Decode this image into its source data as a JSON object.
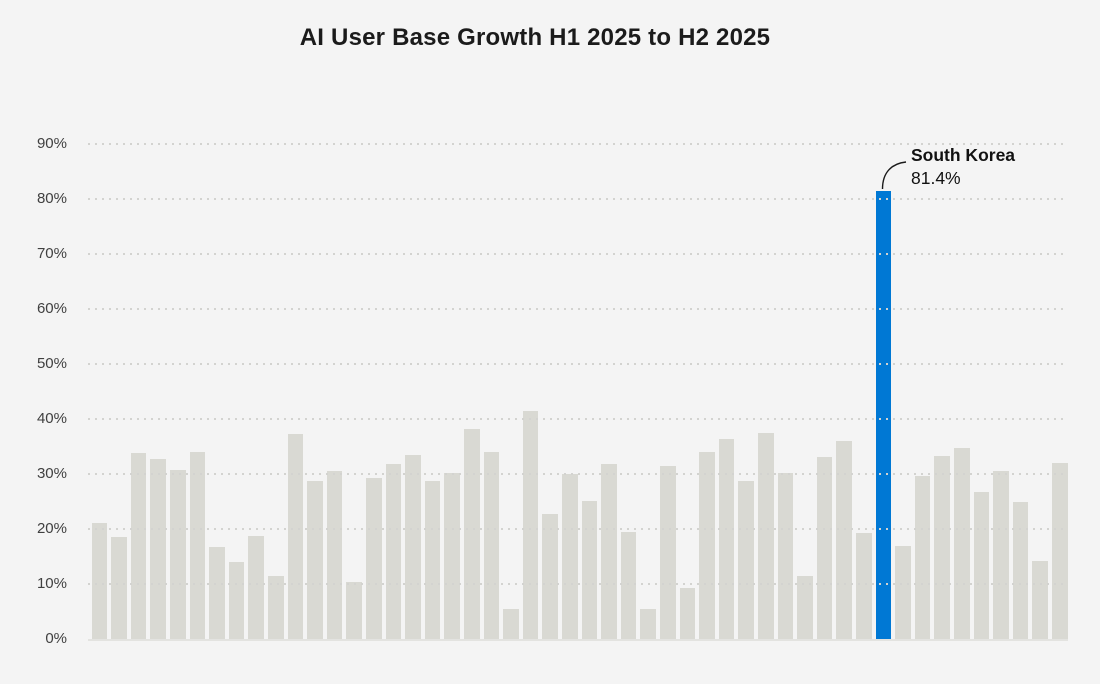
{
  "title": "AI User Base Growth H1 2025 to H2 2025",
  "annotation": {
    "label": "South Korea",
    "value_label": "81.4%"
  },
  "y_axis": {
    "tick_labels": [
      "0%",
      "10%",
      "20%",
      "30%",
      "40%",
      "50%",
      "60%",
      "70%",
      "80%",
      "90%"
    ]
  },
  "colors": {
    "background": "#f4f4f4",
    "bar": "#d9d9d3",
    "highlight": "#0078d4",
    "grid_dot": "#d3d3d0",
    "baseline": "#e3e3e0",
    "title_text": "#1b1b1b",
    "axis_text": "#404040",
    "annotation_text": "#111111"
  },
  "chart_data": {
    "type": "bar",
    "title": "AI User Base Growth H1 2025 to H2 2025",
    "xlabel": "",
    "ylabel": "",
    "ylim": [
      0,
      90
    ],
    "y_tick_step": 10,
    "grid": "dotted-horizontal",
    "legend": "none",
    "num_bars": 50,
    "x_tick_labels_visible": false,
    "values": [
      21.1,
      18.6,
      33.8,
      32.7,
      30.8,
      34.0,
      16.8,
      14.0,
      18.8,
      11.5,
      37.2,
      28.8,
      30.6,
      10.3,
      29.2,
      31.9,
      33.5,
      28.8,
      30.2,
      38.2,
      34.0,
      5.4,
      41.4,
      22.7,
      30.0,
      25.1,
      31.9,
      19.5,
      5.5,
      31.4,
      9.3,
      34.0,
      36.4,
      28.8,
      37.5,
      30.2,
      11.5,
      33.1,
      36.0,
      19.3,
      81.4,
      16.9,
      29.6,
      33.3,
      34.8,
      26.7,
      30.6,
      25.0,
      14.1,
      32.0
    ],
    "highlight": {
      "index": 40,
      "label": "South Korea",
      "value": 81.4,
      "annotation_text": "South Korea 81.4%"
    }
  }
}
